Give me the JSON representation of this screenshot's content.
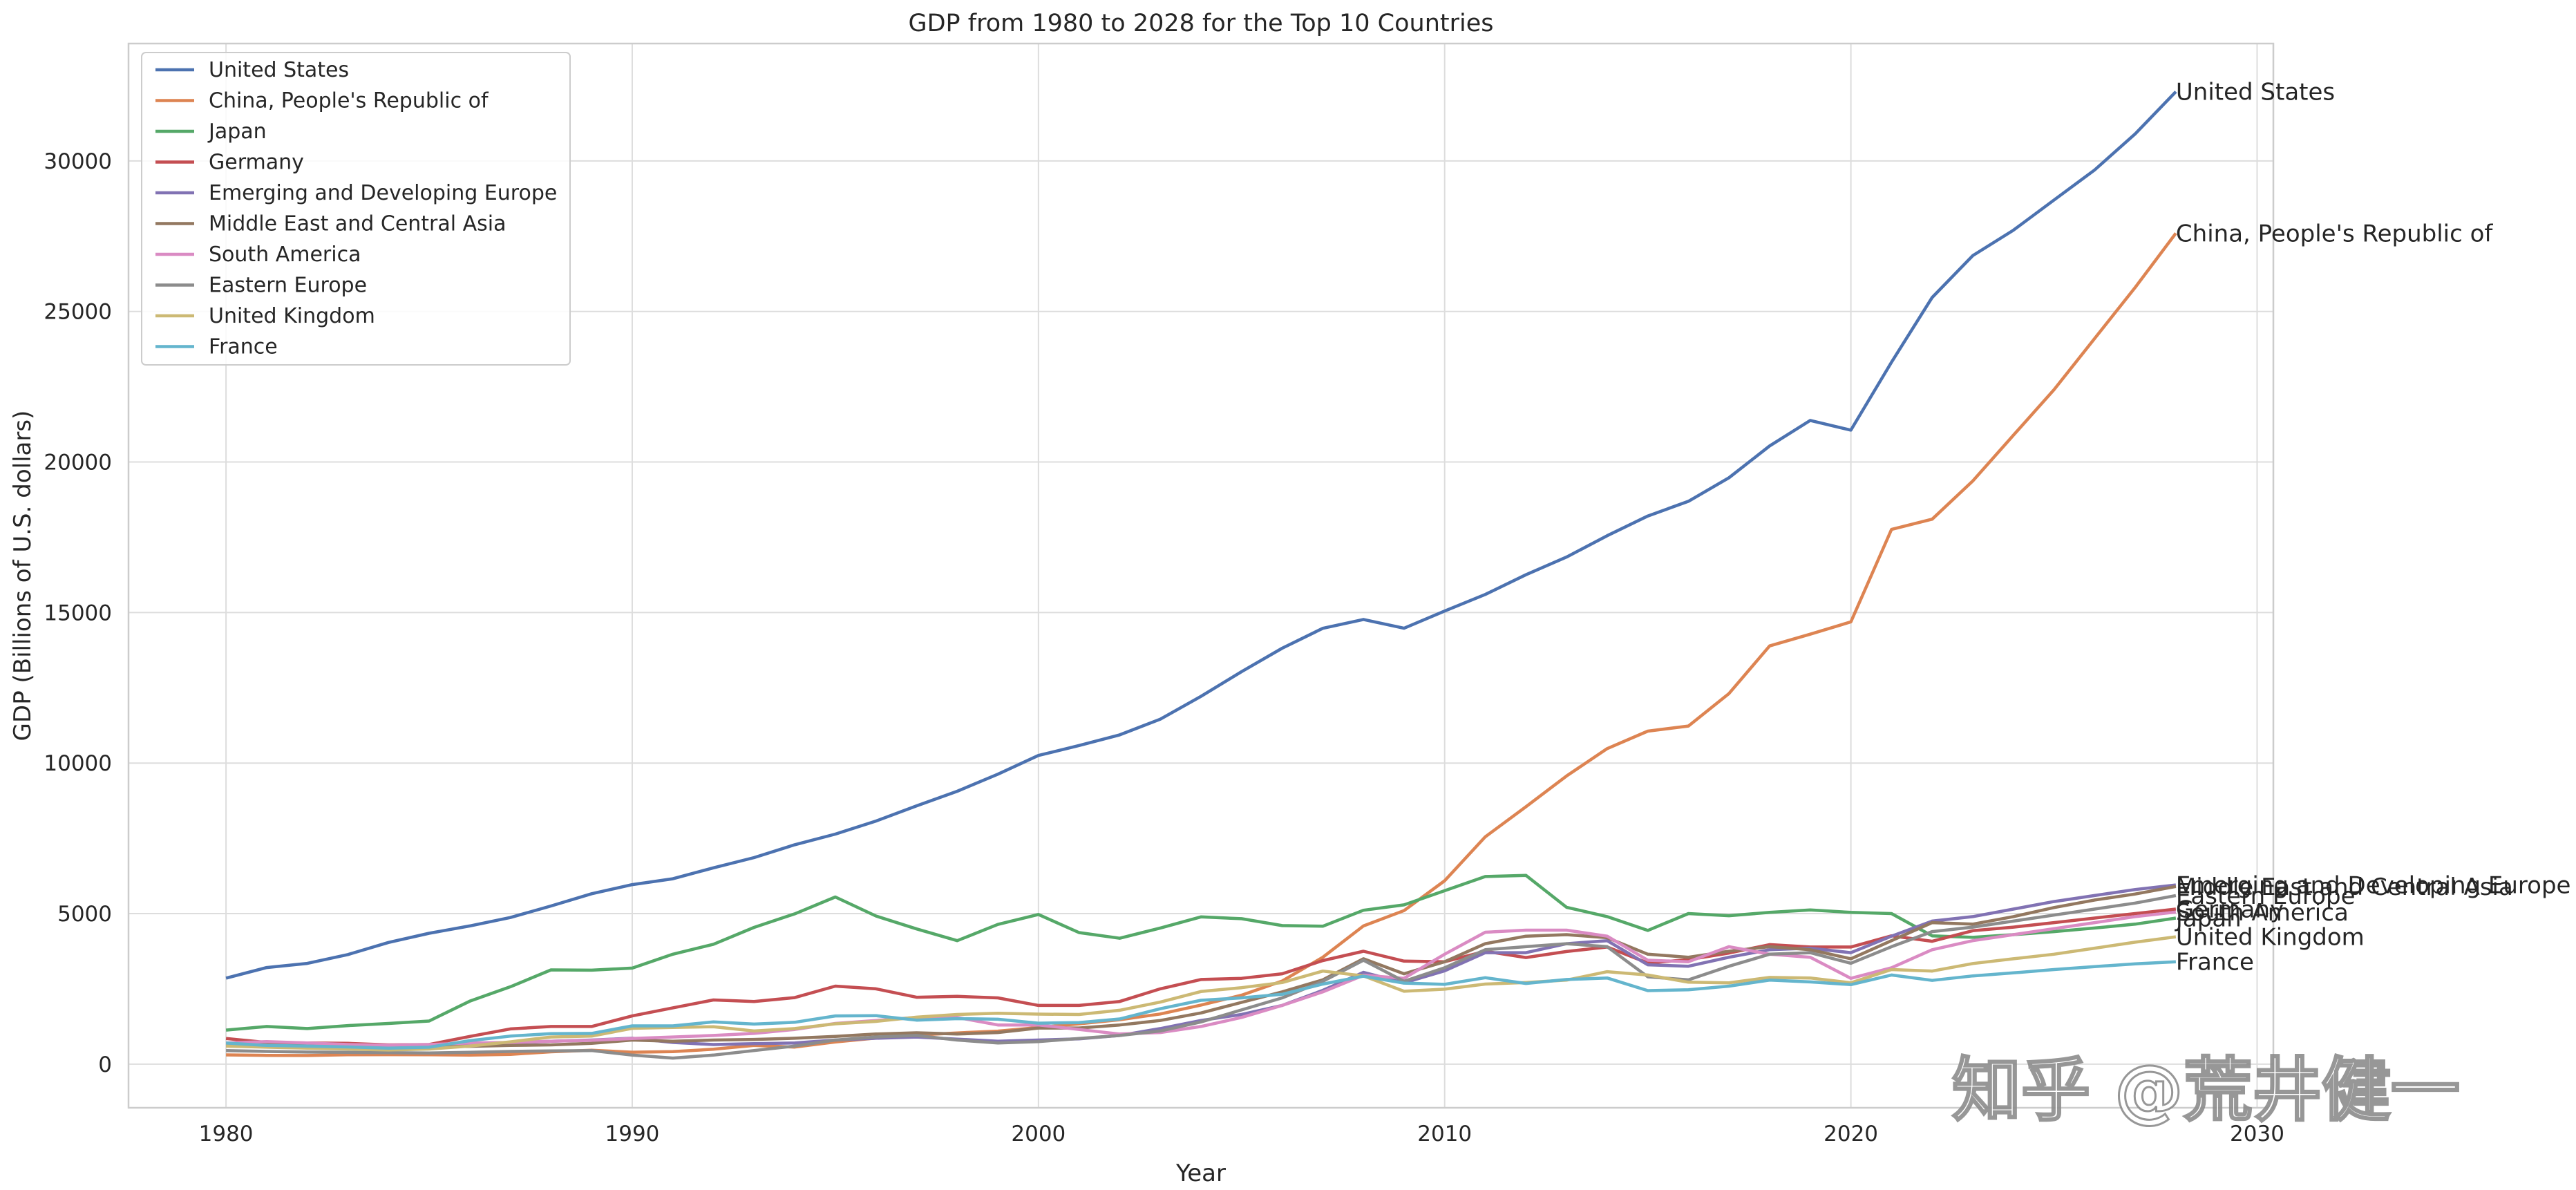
{
  "chart_data": {
    "type": "line",
    "title": "GDP from 1980 to 2028 for the Top 10 Countries",
    "xlabel": "Year",
    "ylabel": "GDP (Billions of U.S. dollars)",
    "xlim": [
      1977.6,
      2030.4
    ],
    "ylim": [
      -1450,
      33900
    ],
    "xticks": [
      1980,
      1990,
      2000,
      2010,
      2020,
      2030
    ],
    "yticks": [
      0,
      5000,
      10000,
      15000,
      20000,
      25000,
      30000
    ],
    "grid": true,
    "legend_position": "top-left",
    "x": [
      1980,
      1981,
      1982,
      1983,
      1984,
      1985,
      1986,
      1987,
      1988,
      1989,
      1990,
      1991,
      1992,
      1993,
      1994,
      1995,
      1996,
      1997,
      1998,
      1999,
      2000,
      2001,
      2002,
      2003,
      2004,
      2005,
      2006,
      2007,
      2008,
      2009,
      2010,
      2011,
      2012,
      2013,
      2014,
      2015,
      2016,
      2017,
      2018,
      2019,
      2020,
      2021,
      2022,
      2023,
      2024,
      2025,
      2026,
      2027,
      2028
    ],
    "series": [
      {
        "name": "United States",
        "color": "#4c72b0",
        "values": [
          2857,
          3207,
          3345,
          3638,
          4040,
          4347,
          4590,
          4870,
          5253,
          5658,
          5963,
          6158,
          6520,
          6859,
          7287,
          7640,
          8073,
          8578,
          9063,
          9631,
          10252,
          10582,
          10936,
          11458,
          12214,
          13037,
          13815,
          14475,
          14769,
          14478,
          15049,
          15600,
          16254,
          16843,
          17551,
          18206,
          18695,
          19477,
          20533,
          21381,
          21060,
          23315,
          25464,
          26855,
          27700,
          28700,
          29700,
          30900,
          32300
        ]
      },
      {
        "name": "China, People's Republic of",
        "color": "#dd8452",
        "values": [
          305,
          290,
          285,
          310,
          315,
          310,
          300,
          325,
          410,
          460,
          395,
          415,
          495,
          620,
          565,
          735,
          865,
          965,
          1035,
          1095,
          1215,
          1340,
          1475,
          1665,
          1960,
          2290,
          2760,
          3550,
          4590,
          5100,
          6090,
          7550,
          8550,
          9570,
          10480,
          11060,
          11230,
          12310,
          13890,
          14280,
          14690,
          17760,
          18100,
          19370,
          20890,
          22400,
          24100,
          25800,
          27600
        ]
      },
      {
        "name": "Japan",
        "color": "#55a868",
        "values": [
          1130,
          1250,
          1180,
          1280,
          1350,
          1430,
          2090,
          2570,
          3130,
          3120,
          3190,
          3650,
          3980,
          4540,
          4990,
          5550,
          4920,
          4490,
          4100,
          4640,
          4970,
          4370,
          4180,
          4520,
          4890,
          4830,
          4600,
          4580,
          5110,
          5290,
          5760,
          6230,
          6270,
          5210,
          4900,
          4440,
          5000,
          4930,
          5040,
          5120,
          5040,
          5000,
          4260,
          4210,
          4300,
          4400,
          4520,
          4650,
          4850
        ]
      },
      {
        "name": "Germany",
        "color": "#c44e52",
        "values": [
          850,
          720,
          700,
          690,
          640,
          650,
          920,
          1170,
          1250,
          1250,
          1600,
          1870,
          2130,
          2080,
          2210,
          2590,
          2500,
          2220,
          2250,
          2200,
          1950,
          1950,
          2080,
          2500,
          2810,
          2850,
          3000,
          3440,
          3750,
          3420,
          3400,
          3750,
          3540,
          3740,
          3890,
          3360,
          3470,
          3690,
          3970,
          3890,
          3890,
          4260,
          4080,
          4430,
          4550,
          4700,
          4850,
          5000,
          5150
        ]
      },
      {
        "name": "Emerging and Developing Europe",
        "color": "#8172b3",
        "values": [
          600,
          580,
          560,
          550,
          540,
          550,
          620,
          700,
          760,
          800,
          860,
          720,
          650,
          680,
          700,
          800,
          860,
          900,
          830,
          760,
          800,
          840,
          950,
          1180,
          1450,
          1650,
          1950,
          2450,
          3050,
          2700,
          3100,
          3700,
          3700,
          4000,
          4100,
          3300,
          3250,
          3550,
          3800,
          3850,
          3700,
          4250,
          4750,
          4900,
          5150,
          5400,
          5600,
          5800,
          5950
        ]
      },
      {
        "name": "Middle East and Central Asia",
        "color": "#937860",
        "values": [
          700,
          650,
          640,
          620,
          600,
          580,
          590,
          620,
          640,
          690,
          800,
          760,
          800,
          820,
          860,
          920,
          1000,
          1040,
          1000,
          1050,
          1200,
          1200,
          1300,
          1450,
          1700,
          2050,
          2400,
          2800,
          3500,
          3000,
          3400,
          4000,
          4250,
          4300,
          4200,
          3650,
          3550,
          3750,
          3900,
          3800,
          3500,
          4100,
          4700,
          4650,
          4900,
          5200,
          5450,
          5650,
          5900
        ]
      },
      {
        "name": "South America",
        "color": "#da8bc3",
        "values": [
          700,
          750,
          700,
          650,
          630,
          650,
          700,
          720,
          760,
          790,
          850,
          900,
          950,
          1020,
          1150,
          1350,
          1450,
          1550,
          1550,
          1300,
          1300,
          1150,
          1000,
          1050,
          1250,
          1550,
          1950,
          2400,
          2950,
          2850,
          3650,
          4380,
          4450,
          4450,
          4250,
          3450,
          3400,
          3900,
          3650,
          3550,
          2850,
          3200,
          3800,
          4100,
          4300,
          4500,
          4700,
          4900,
          5050
        ]
      },
      {
        "name": "Eastern Europe",
        "color": "#8c8c8c",
        "values": [
          450,
          420,
          400,
          390,
          380,
          370,
          390,
          420,
          440,
          450,
          300,
          200,
          300,
          450,
          600,
          800,
          900,
          950,
          800,
          700,
          750,
          850,
          950,
          1100,
          1400,
          1800,
          2200,
          2750,
          3450,
          2750,
          3200,
          3800,
          3900,
          4000,
          3900,
          2900,
          2800,
          3250,
          3650,
          3700,
          3350,
          3900,
          4400,
          4550,
          4750,
          4950,
          5150,
          5350,
          5600
        ]
      },
      {
        "name": "United Kingdom",
        "color": "#ccb974",
        "values": [
          600,
          560,
          530,
          500,
          470,
          500,
          600,
          740,
          900,
          930,
          1190,
          1220,
          1240,
          1100,
          1180,
          1340,
          1420,
          1560,
          1650,
          1690,
          1660,
          1650,
          1790,
          2060,
          2410,
          2540,
          2710,
          3090,
          2930,
          2420,
          2490,
          2660,
          2710,
          2790,
          3070,
          2960,
          2720,
          2700,
          2880,
          2860,
          2700,
          3140,
          3090,
          3340,
          3500,
          3650,
          3850,
          4050,
          4230
        ]
      },
      {
        "name": "France",
        "color": "#64b5cd",
        "values": [
          700,
          620,
          600,
          570,
          530,
          560,
          780,
          930,
          1010,
          1020,
          1270,
          1270,
          1400,
          1330,
          1390,
          1600,
          1610,
          1460,
          1510,
          1490,
          1360,
          1380,
          1500,
          1840,
          2120,
          2200,
          2320,
          2660,
          2920,
          2690,
          2650,
          2870,
          2680,
          2810,
          2860,
          2440,
          2470,
          2590,
          2790,
          2730,
          2640,
          2960,
          2780,
          2930,
          3030,
          3140,
          3240,
          3330,
          3400
        ]
      }
    ]
  },
  "watermark": "知乎 @荒井健一"
}
